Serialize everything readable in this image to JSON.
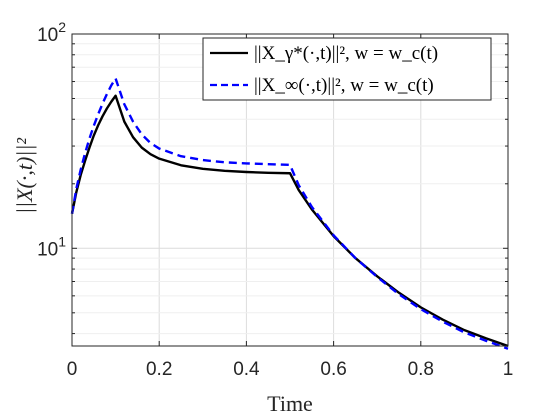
{
  "chart_data": {
    "type": "line",
    "title": "",
    "xlabel": "Time",
    "ylabel": "||X(·,t)||²",
    "x_scale": "linear",
    "y_scale": "log",
    "xlim": [
      0,
      1
    ],
    "ylim": [
      3.5,
      100
    ],
    "x_ticks": [
      0,
      0.2,
      0.4,
      0.6,
      0.8,
      1
    ],
    "x_tick_labels": [
      "0",
      "0.2",
      "0.4",
      "0.6",
      "0.8",
      "1"
    ],
    "y_ticks": [
      10,
      100
    ],
    "y_tick_labels": [
      "10¹",
      "10²"
    ],
    "grid": true,
    "legend_position": "top-right",
    "series": [
      {
        "name": "||X_γ*(·,t)||², w = w_c(t)",
        "color": "#000000",
        "dash": "solid",
        "x": [
          0,
          0.01,
          0.02,
          0.03,
          0.04,
          0.05,
          0.06,
          0.07,
          0.08,
          0.09,
          0.1,
          0.12,
          0.14,
          0.16,
          0.18,
          0.2,
          0.25,
          0.3,
          0.35,
          0.4,
          0.45,
          0.5,
          0.52,
          0.55,
          0.6,
          0.65,
          0.7,
          0.75,
          0.8,
          0.85,
          0.9,
          0.95,
          1
        ],
        "y": [
          14.5,
          18.3,
          22.0,
          25.6,
          29.5,
          33.6,
          37.5,
          41.3,
          44.9,
          48.3,
          51.5,
          39.0,
          33.0,
          29.5,
          27.5,
          26.2,
          24.4,
          23.5,
          23.0,
          22.7,
          22.5,
          22.4,
          18.7,
          15.2,
          11.4,
          9.0,
          7.4,
          6.2,
          5.3,
          4.65,
          4.15,
          3.8,
          3.5
        ]
      },
      {
        "name": "||X_∞(·,t)||², w = w_c(t)",
        "color": "#0000ff",
        "dash": "dashed",
        "x": [
          0,
          0.01,
          0.02,
          0.03,
          0.04,
          0.05,
          0.06,
          0.07,
          0.08,
          0.09,
          0.1,
          0.12,
          0.14,
          0.16,
          0.18,
          0.2,
          0.25,
          0.3,
          0.35,
          0.4,
          0.45,
          0.5,
          0.52,
          0.55,
          0.6,
          0.65,
          0.7,
          0.75,
          0.8,
          0.85,
          0.9,
          0.95,
          1
        ],
        "y": [
          14.5,
          19.0,
          23.3,
          27.8,
          32.5,
          37.3,
          42.2,
          47.3,
          52.4,
          57.5,
          62.0,
          47.0,
          39.0,
          34.0,
          31.0,
          29.2,
          26.9,
          25.8,
          25.2,
          24.9,
          24.7,
          24.5,
          19.7,
          15.6,
          11.5,
          9.0,
          7.35,
          6.1,
          5.2,
          4.55,
          4.05,
          3.7,
          3.4
        ]
      }
    ]
  }
}
